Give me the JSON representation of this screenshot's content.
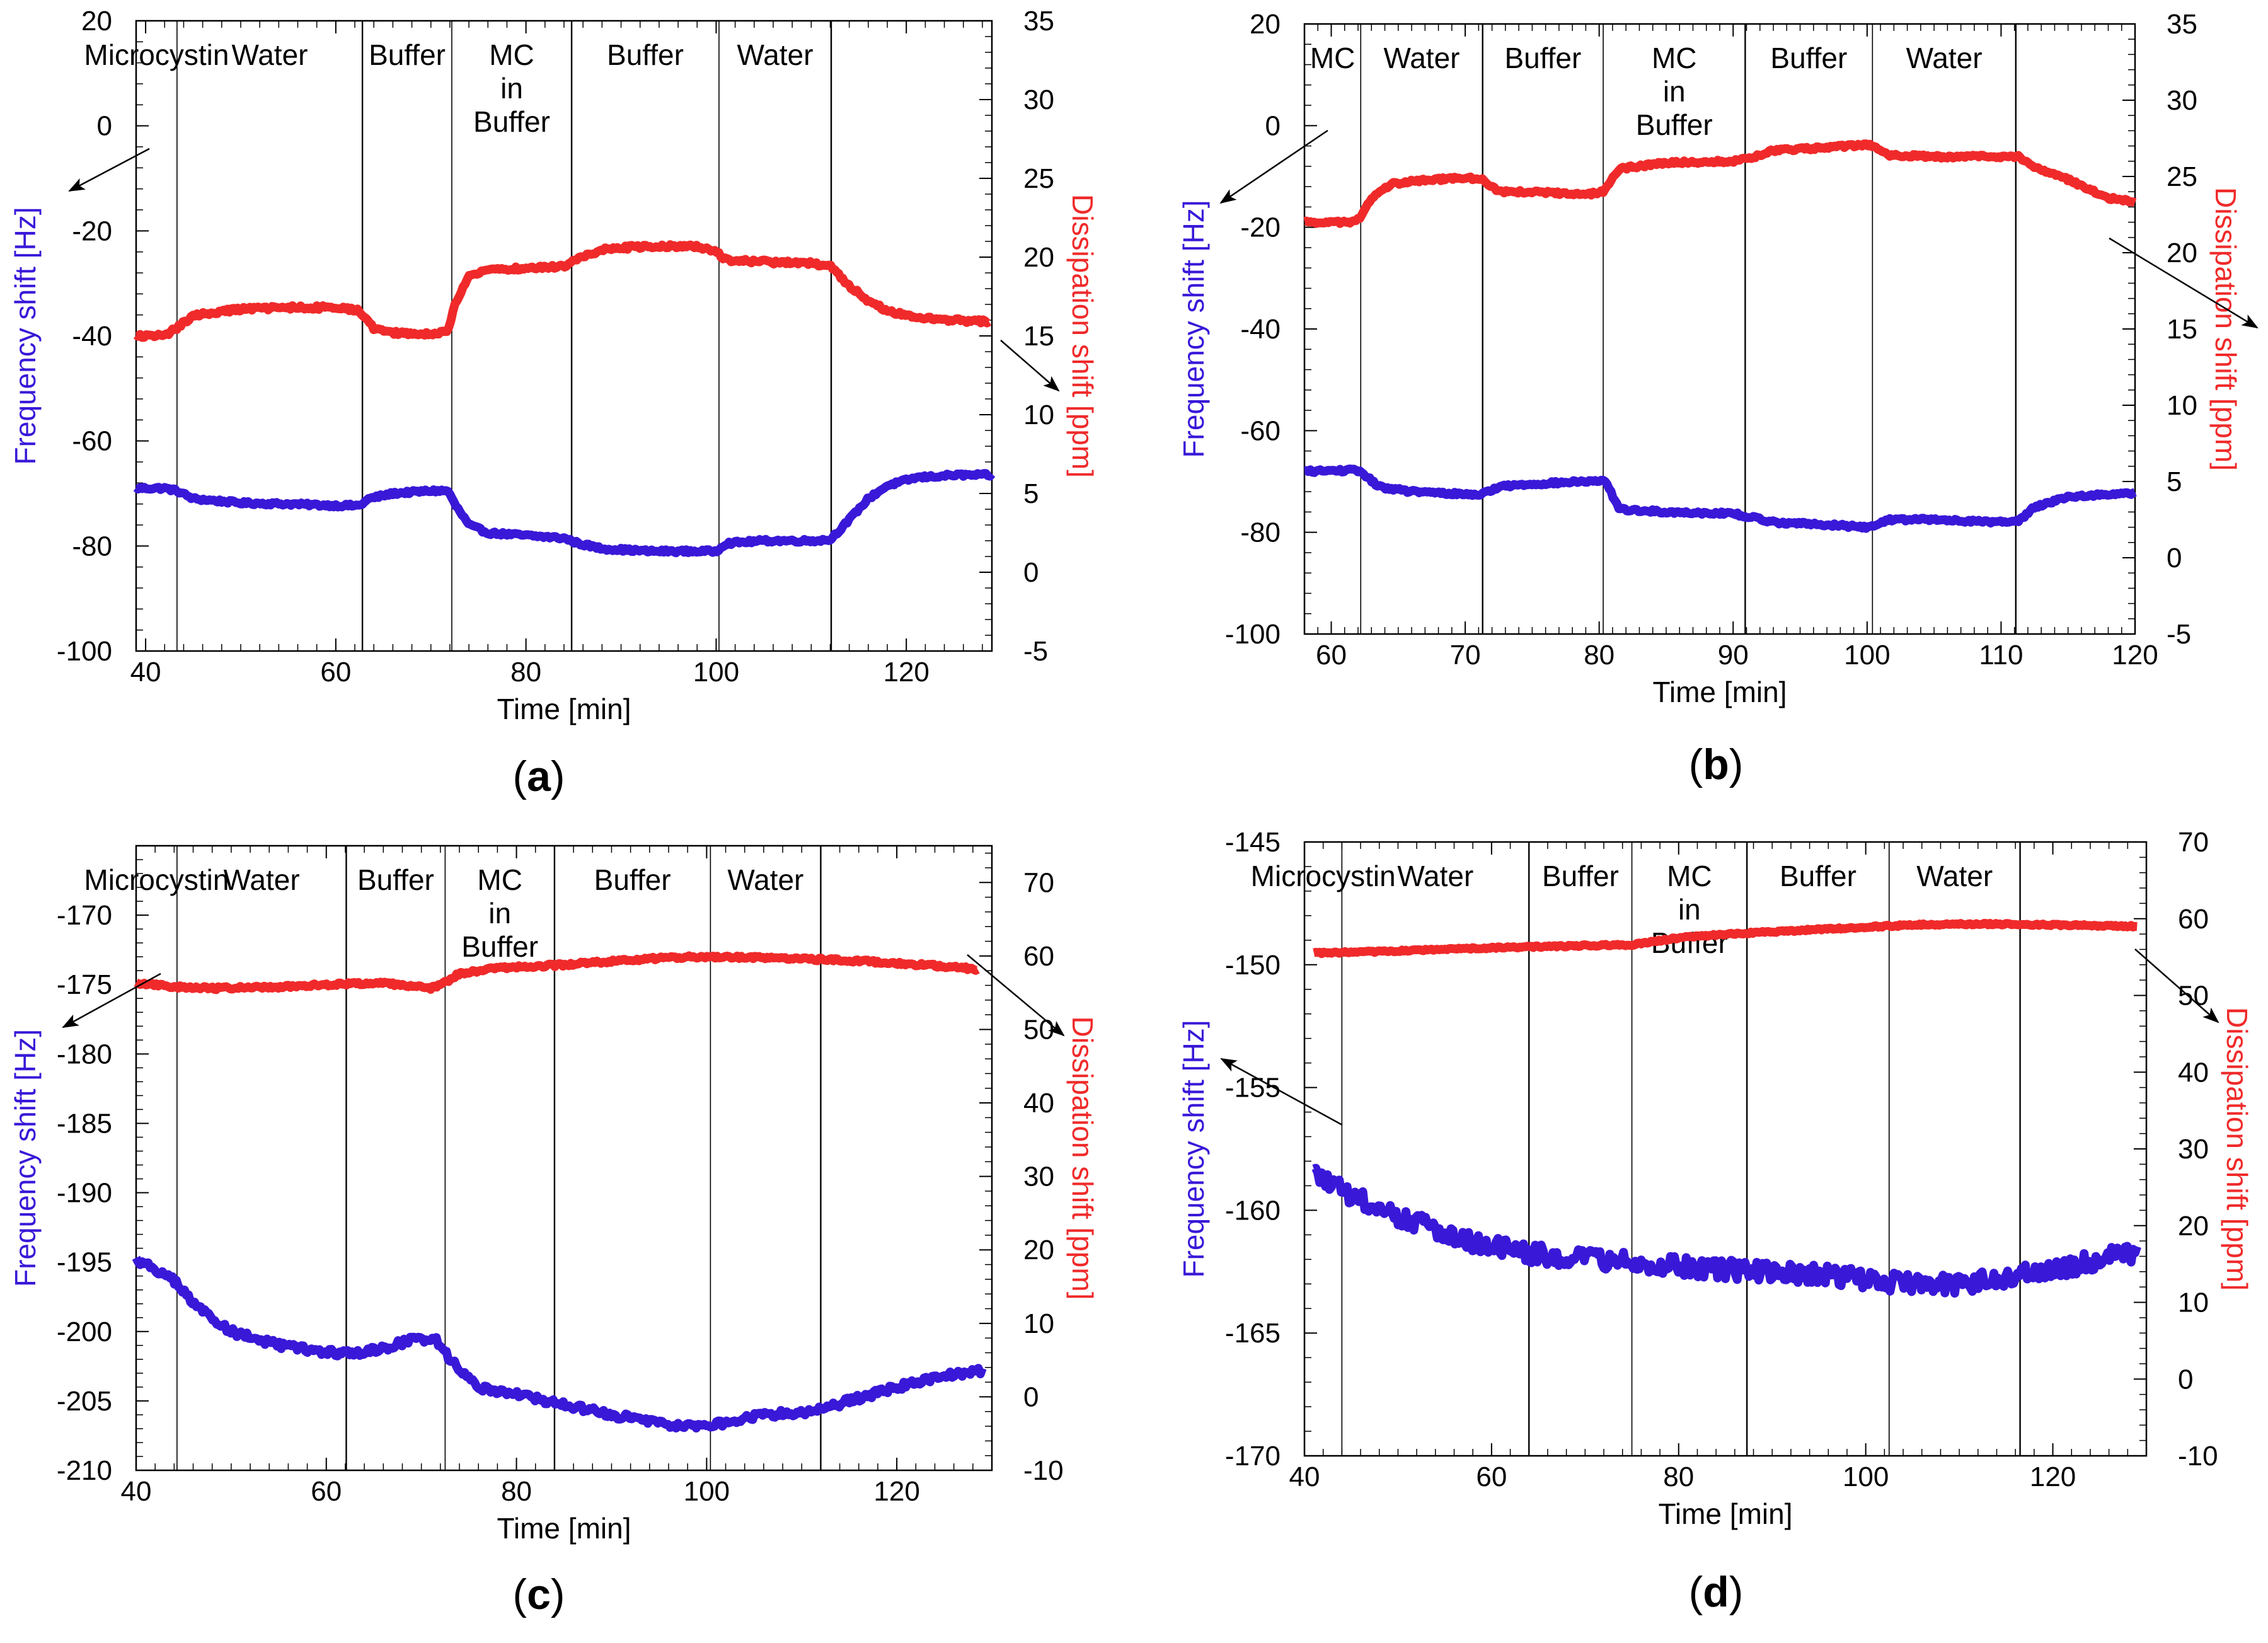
{
  "colors": {
    "frequency": "#3a18d8",
    "dissipation": "#f02a2a",
    "axis": "#000000",
    "divider": "#000000"
  },
  "chart_data": [
    {
      "panel": "(a)",
      "label_letter": "a",
      "type": "line",
      "xlabel": "Time [min]",
      "ylabel_left": "Frequency shift [Hz]",
      "ylabel_right": "Dissipation shift [ppm]",
      "xlim": [
        39,
        129
      ],
      "xticks": [
        40,
        60,
        80,
        100,
        120
      ],
      "ylim_left": [
        -100,
        20
      ],
      "yticks_left": [
        -100,
        -80,
        -60,
        -40,
        -20,
        0,
        20
      ],
      "ylim_right": [
        -5,
        35
      ],
      "yticks_right": [
        -5,
        0,
        5,
        10,
        15,
        20,
        25,
        30,
        35
      ],
      "dividers": [
        43.3,
        62.8,
        72.2,
        84.8,
        100.3,
        112.1
      ],
      "segments": [
        [
          "Microcystin"
        ],
        [
          "Water"
        ],
        [
          "Buffer"
        ],
        [
          "MC",
          "in",
          "Buffer"
        ],
        [
          "Buffer"
        ],
        [
          "Water"
        ]
      ],
      "series": [
        {
          "name": "Frequency shift",
          "axis": "left",
          "noise": 0.3,
          "x": [
            39,
            42,
            43.3,
            45,
            50,
            55,
            60,
            62.5,
            63.5,
            66,
            70,
            71.8,
            72.5,
            74,
            76,
            80,
            84,
            85.5,
            88,
            93,
            98,
            100,
            101,
            105,
            110,
            112,
            114,
            116,
            118,
            121,
            125,
            129
          ],
          "y": [
            -69,
            -69,
            -69.5,
            -71,
            -71.8,
            -72,
            -72.3,
            -72.3,
            -71,
            -70,
            -69.5,
            -69.5,
            -72,
            -76,
            -77.5,
            -78,
            -78.5,
            -79.5,
            -80.5,
            -81,
            -81,
            -81,
            -79.5,
            -79,
            -79,
            -78.8,
            -75,
            -71,
            -68.5,
            -67,
            -66.5,
            -66.5
          ]
        },
        {
          "name": "Dissipation shift",
          "axis": "right",
          "noise": 0.12,
          "x": [
            39,
            42,
            43.3,
            45,
            50,
            55,
            60,
            62.5,
            64,
            66,
            70,
            71.8,
            72.5,
            74,
            76,
            80,
            84,
            85.5,
            88,
            93,
            98,
            100,
            101,
            105,
            110,
            112,
            114,
            116,
            118,
            121,
            125,
            128.7
          ],
          "y": [
            15,
            15,
            15.5,
            16.3,
            16.7,
            16.8,
            16.8,
            16.6,
            15.5,
            15.2,
            15.1,
            15.3,
            17,
            18.8,
            19.2,
            19.3,
            19.4,
            19.9,
            20.5,
            20.7,
            20.7,
            20.4,
            19.8,
            19.7,
            19.6,
            19.4,
            18.2,
            17.2,
            16.6,
            16.2,
            16,
            15.9
          ]
        }
      ]
    },
    {
      "panel": "(b)",
      "label_letter": "b",
      "type": "line",
      "xlabel": "Time [min]",
      "ylabel_left": "Frequency shift [Hz]",
      "ylabel_right": "Dissipation shift [ppm]",
      "xlim": [
        58,
        120
      ],
      "xticks": [
        60,
        70,
        80,
        90,
        100,
        110,
        120
      ],
      "ylim_left": [
        -100,
        20
      ],
      "yticks_left": [
        -100,
        -80,
        -60,
        -40,
        -20,
        0,
        20
      ],
      "ylim_right": [
        -5,
        35
      ],
      "yticks_right": [
        -5,
        0,
        5,
        10,
        15,
        20,
        25,
        30,
        35
      ],
      "dividers": [
        62.2,
        71.3,
        80.3,
        90.9,
        100.4,
        111.1
      ],
      "segments": [
        [
          "MC"
        ],
        [
          "Water"
        ],
        [
          "Buffer"
        ],
        [
          "MC",
          "in",
          "Buffer"
        ],
        [
          "Buffer"
        ],
        [
          "Water"
        ]
      ],
      "series": [
        {
          "name": "Frequency shift",
          "axis": "left",
          "noise": 0.3,
          "x": [
            58,
            61.5,
            62.2,
            63.5,
            66,
            70,
            71.3,
            72.5,
            75,
            79,
            80.5,
            81.5,
            85,
            90,
            91.3,
            93,
            97,
            100,
            100.5,
            101.5,
            105,
            110,
            111.3,
            112.5,
            115,
            118,
            120
          ],
          "y": [
            -68,
            -67.8,
            -68,
            -71,
            -72,
            -72.5,
            -72.5,
            -71,
            -70.5,
            -70,
            -70,
            -75.5,
            -76,
            -76.3,
            -77,
            -78,
            -78.5,
            -79,
            -78.8,
            -77.5,
            -77.5,
            -78,
            -77.8,
            -75,
            -73,
            -72.5,
            -72.3
          ]
        },
        {
          "name": "Dissipation shift",
          "axis": "right",
          "noise": 0.1,
          "x": [
            58,
            61.5,
            62.2,
            63,
            64.5,
            66,
            70,
            71.3,
            72.5,
            75,
            79,
            80.3,
            81.5,
            85,
            90,
            91.3,
            93,
            97,
            100,
            100.5,
            101.5,
            105,
            110,
            111.3,
            112.5,
            115,
            118,
            120
          ],
          "y": [
            22,
            22,
            22.3,
            23.6,
            24.5,
            24.7,
            24.9,
            24.8,
            24,
            24,
            23.8,
            24,
            25.5,
            25.9,
            26,
            26.2,
            26.7,
            26.9,
            27.1,
            27,
            26.4,
            26.3,
            26.3,
            26.3,
            25.6,
            24.8,
            23.6,
            23.3
          ]
        }
      ]
    },
    {
      "panel": "(c)",
      "label_letter": "c",
      "type": "line",
      "xlabel": "Time [min]",
      "ylabel_left": "Frequency shift [Hz]",
      "ylabel_right": "Dissipation shift [ppm]",
      "xlim": [
        40,
        130
      ],
      "xticks": [
        40,
        60,
        80,
        100,
        120
      ],
      "ylim_left": [
        -210,
        -165
      ],
      "yticks_left": [
        -210,
        -205,
        -200,
        -195,
        -190,
        -185,
        -180,
        -175,
        -170
      ],
      "ylim_right": [
        -10,
        75
      ],
      "yticks_right": [
        -10,
        0,
        10,
        20,
        30,
        40,
        50,
        60,
        70
      ],
      "dividers": [
        44.3,
        62.1,
        72.5,
        84,
        100.4,
        112
      ],
      "segments": [
        [
          "Microcystin"
        ],
        [
          "Water"
        ],
        [
          "Buffer"
        ],
        [
          "MC",
          "in",
          "Buffer"
        ],
        [
          "Buffer"
        ],
        [
          "Water"
        ]
      ],
      "series": [
        {
          "name": "Frequency shift",
          "axis": "left",
          "noise": 0.25,
          "x": [
            40,
            42,
            44.3,
            46,
            50,
            55,
            60,
            63,
            66,
            69,
            71.5,
            73,
            76,
            80,
            85,
            90,
            95,
            98,
            100,
            103,
            106,
            110,
            112,
            115,
            120,
            125,
            129
          ],
          "y": [
            -194.8,
            -195.5,
            -196.5,
            -198,
            -200,
            -201,
            -201.5,
            -201.6,
            -201.2,
            -200.6,
            -200.5,
            -202,
            -204,
            -204.5,
            -205.3,
            -206,
            -206.6,
            -206.8,
            -206.8,
            -206.4,
            -206,
            -205.8,
            -205.6,
            -205,
            -204,
            -203.2,
            -202.8
          ]
        },
        {
          "name": "Dissipation shift",
          "axis": "right",
          "noise": 0.2,
          "x": [
            40,
            44,
            48,
            55,
            62,
            66,
            71,
            72.5,
            74,
            77,
            80,
            85,
            90,
            95,
            100,
            105,
            110,
            115,
            120,
            125,
            128.5
          ],
          "y": [
            56.3,
            55.8,
            55.6,
            55.8,
            56.2,
            56.3,
            55.6,
            56.4,
            57.6,
            58.2,
            58.5,
            58.8,
            59.3,
            59.7,
            59.9,
            59.8,
            59.6,
            59.4,
            59,
            58.6,
            58.2
          ]
        }
      ]
    },
    {
      "panel": "(d)",
      "label_letter": "d",
      "type": "line",
      "xlabel": "Time [min]",
      "ylabel_left": "Frequency shift [Hz]",
      "ylabel_right": "Dissipation shift [ppm]",
      "xlim": [
        40,
        130
      ],
      "xticks": [
        40,
        60,
        80,
        100,
        120
      ],
      "ylim_left": [
        -170,
        -145
      ],
      "yticks_left": [
        -170,
        -165,
        -160,
        -155,
        -150,
        -145
      ],
      "ylim_right": [
        -10,
        70
      ],
      "yticks_right": [
        -10,
        0,
        10,
        20,
        30,
        40,
        50,
        60,
        70
      ],
      "dividers": [
        44,
        64,
        75,
        87.3,
        102.5,
        116.5
      ],
      "segments": [
        [
          "Microcystin"
        ],
        [
          "Water"
        ],
        [
          "Buffer"
        ],
        [
          "MC",
          "in",
          "Buffer"
        ],
        [
          "Buffer"
        ],
        [
          "Water"
        ]
      ],
      "series": [
        {
          "name": "Frequency shift",
          "axis": "left",
          "noise": 0.4,
          "x": [
            41,
            43,
            46,
            50,
            55,
            60,
            65,
            70,
            75,
            80,
            85,
            90,
            95,
            100,
            105,
            110,
            115,
            120,
            125,
            129
          ],
          "y": [
            -158.5,
            -159,
            -159.6,
            -160.2,
            -160.9,
            -161.5,
            -161.8,
            -162,
            -162.1,
            -162.3,
            -162.4,
            -162.5,
            -162.6,
            -162.8,
            -163,
            -163,
            -162.7,
            -162.4,
            -162,
            -161.7
          ]
        },
        {
          "name": "Dissipation shift",
          "axis": "right",
          "noise": 0.12,
          "x": [
            41,
            50,
            60,
            70,
            75,
            80,
            85,
            90,
            95,
            100,
            105,
            110,
            115,
            120,
            125,
            129
          ],
          "y": [
            55.5,
            55.8,
            56.2,
            56.5,
            56.6,
            57.5,
            58,
            58.3,
            58.6,
            58.9,
            59.2,
            59.3,
            59.3,
            59.2,
            59.1,
            59
          ]
        }
      ]
    }
  ]
}
